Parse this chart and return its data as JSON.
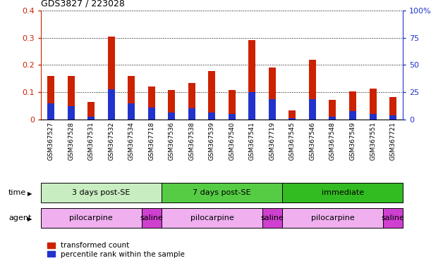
{
  "title": "GDS3827 / 223028",
  "samples": [
    "GSM367527",
    "GSM367528",
    "GSM367531",
    "GSM367532",
    "GSM367534",
    "GSM367718",
    "GSM367536",
    "GSM367538",
    "GSM367539",
    "GSM367540",
    "GSM367541",
    "GSM367719",
    "GSM367545",
    "GSM367546",
    "GSM367548",
    "GSM367549",
    "GSM367551",
    "GSM367721"
  ],
  "red_values": [
    0.16,
    0.16,
    0.065,
    0.305,
    0.16,
    0.122,
    0.108,
    0.135,
    0.178,
    0.108,
    0.292,
    0.192,
    0.033,
    0.218,
    0.073,
    0.102,
    0.114,
    0.083
  ],
  "blue_values": [
    0.06,
    0.05,
    0.01,
    0.11,
    0.06,
    0.045,
    0.025,
    0.04,
    0.025,
    0.02,
    0.1,
    0.075,
    0.005,
    0.075,
    0.01,
    0.03,
    0.02,
    0.015
  ],
  "ylim_left": [
    0,
    0.4
  ],
  "ylim_right": [
    0,
    100
  ],
  "yticks_left": [
    0.0,
    0.1,
    0.2,
    0.3,
    0.4
  ],
  "yticks_right": [
    0,
    25,
    50,
    75,
    100
  ],
  "ytick_labels_left": [
    "0",
    "0.1",
    "0.2",
    "0.3",
    "0.4"
  ],
  "ytick_labels_right": [
    "0",
    "25",
    "50",
    "75",
    "100%"
  ],
  "time_groups": [
    {
      "label": "3 days post-SE",
      "start": 0,
      "end": 6,
      "color": "#c8edc0"
    },
    {
      "label": "7 days post-SE",
      "start": 6,
      "end": 12,
      "color": "#55cc44"
    },
    {
      "label": "immediate",
      "start": 12,
      "end": 18,
      "color": "#33bb22"
    }
  ],
  "agent_groups": [
    {
      "label": "pilocarpine",
      "start": 0,
      "end": 5,
      "color": "#f0b0f0"
    },
    {
      "label": "saline",
      "start": 5,
      "end": 6,
      "color": "#d040d0"
    },
    {
      "label": "pilocarpine",
      "start": 6,
      "end": 11,
      "color": "#f0b0f0"
    },
    {
      "label": "saline",
      "start": 11,
      "end": 12,
      "color": "#d040d0"
    },
    {
      "label": "pilocarpine",
      "start": 12,
      "end": 17,
      "color": "#f0b0f0"
    },
    {
      "label": "saline",
      "start": 17,
      "end": 18,
      "color": "#d040d0"
    }
  ],
  "red_color": "#cc2200",
  "blue_color": "#2233cc",
  "bar_width": 0.35,
  "tick_color_left": "#cc2200",
  "tick_color_right": "#2233cc",
  "legend_red": "transformed count",
  "legend_blue": "percentile rank within the sample"
}
